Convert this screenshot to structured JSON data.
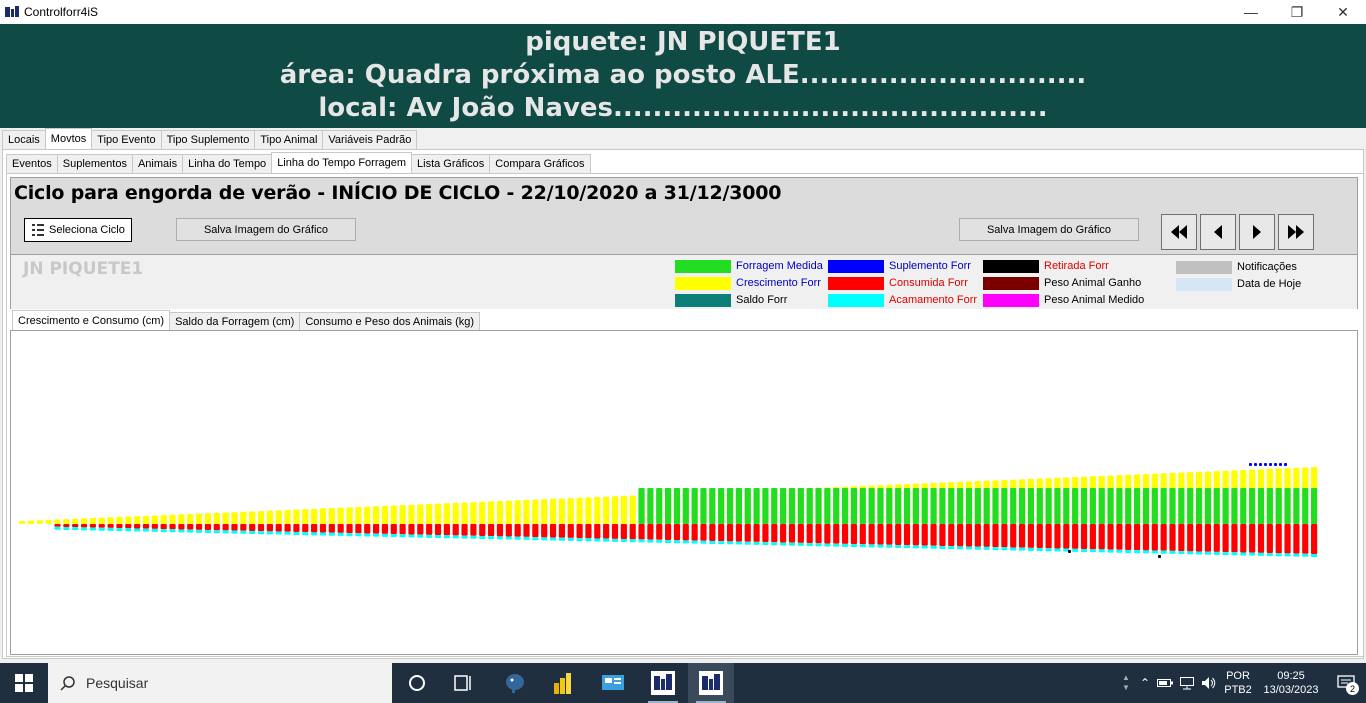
{
  "window": {
    "title": "Controlforr4iS",
    "minimize_glyph": "—",
    "maximize_glyph": "❐",
    "close_glyph": "✕"
  },
  "header": {
    "line1": "piquete: JN PIQUETE1",
    "line2": "área: Quadra próxima ao posto ALE.............................",
    "line3": "local: Av João Naves............................................"
  },
  "main_tabs": [
    "Locais",
    "Movtos",
    "Tipo Evento",
    "Tipo Suplemento",
    "Tipo Animal",
    "Variáveis Padrão"
  ],
  "main_tab_active": 1,
  "sub_tabs": [
    "Eventos",
    "Suplementos",
    "Animais",
    "Linha do Tempo",
    "Linha do Tempo Forragem",
    "Lista Gráficos",
    "Compara Gráficos"
  ],
  "sub_tab_active": 4,
  "cycle": {
    "title": "Ciclo para engorda de verão - INÍCIO DE CICLO - 22/10/2020 a 31/12/3000",
    "select_button": "Seleciona Ciclo",
    "save_image_button_left": "Salva Imagem do Gráfico",
    "save_image_button_right": "Salva Imagem do Gráfico"
  },
  "piquete_label": "JN PIQUETE1",
  "legend": [
    {
      "label": "Forragem Medida",
      "color": "#22dd22",
      "text_color": "#0000c0"
    },
    {
      "label": "Crescimento Forr",
      "color": "#ffff00",
      "text_color": "#0000c0"
    },
    {
      "label": "Saldo Forr",
      "color": "#0b7f78",
      "text_color": "#000000"
    },
    {
      "label": "Suplemento Forr",
      "color": "#0000ff",
      "text_color": "#0000c0"
    },
    {
      "label": "Consumida Forr",
      "color": "#ff0000",
      "text_color": "#e00000"
    },
    {
      "label": "Acamamento Forr",
      "color": "#00ffff",
      "text_color": "#e00000"
    },
    {
      "label": "Retirada Forr",
      "color": "#000000",
      "text_color": "#e00000"
    },
    {
      "label": "Peso Animal Ganho",
      "color": "#7a0000",
      "text_color": "#000000"
    },
    {
      "label": "Peso Animal Medido",
      "color": "#ff00ff",
      "text_color": "#000000"
    },
    {
      "label": "Notificações",
      "color": "#c0c0c0",
      "text_color": "#000000"
    },
    {
      "label": "Data de Hoje",
      "color": "#d6e6f4",
      "text_color": "#000000"
    }
  ],
  "chart_tabs": [
    "Crescimento e Consumo (cm)",
    "Saldo da Forragem (cm)",
    "Consumo e Peso dos Animais (kg)"
  ],
  "chart_tab_active": 0,
  "chart_data": {
    "type": "bar",
    "title": "",
    "xlabel": "",
    "ylabel": "",
    "n_days": 147,
    "forragem_medida_start_index": 70,
    "series": [
      {
        "name": "Crescimento Forr",
        "shape": "linear growth",
        "start": 0.5,
        "end": 3.6
      },
      {
        "name": "Forragem Medida",
        "level": 3.4
      },
      {
        "name": "Consumida Forr",
        "shape": "linear",
        "start": 0.5,
        "end": 3.0
      },
      {
        "name": "Acamamento Forr",
        "shape": "thin band below consumption"
      },
      {
        "name": "Suplemento Forr",
        "shape": "few points near last days"
      },
      {
        "name": "Retirada Forr",
        "shape": "two isolated points"
      }
    ]
  },
  "taskbar": {
    "search_placeholder": "Pesquisar",
    "language_top": "POR",
    "language_bottom": "PTB2",
    "time": "09:25",
    "date": "13/03/2023",
    "notifications_count": "2"
  }
}
